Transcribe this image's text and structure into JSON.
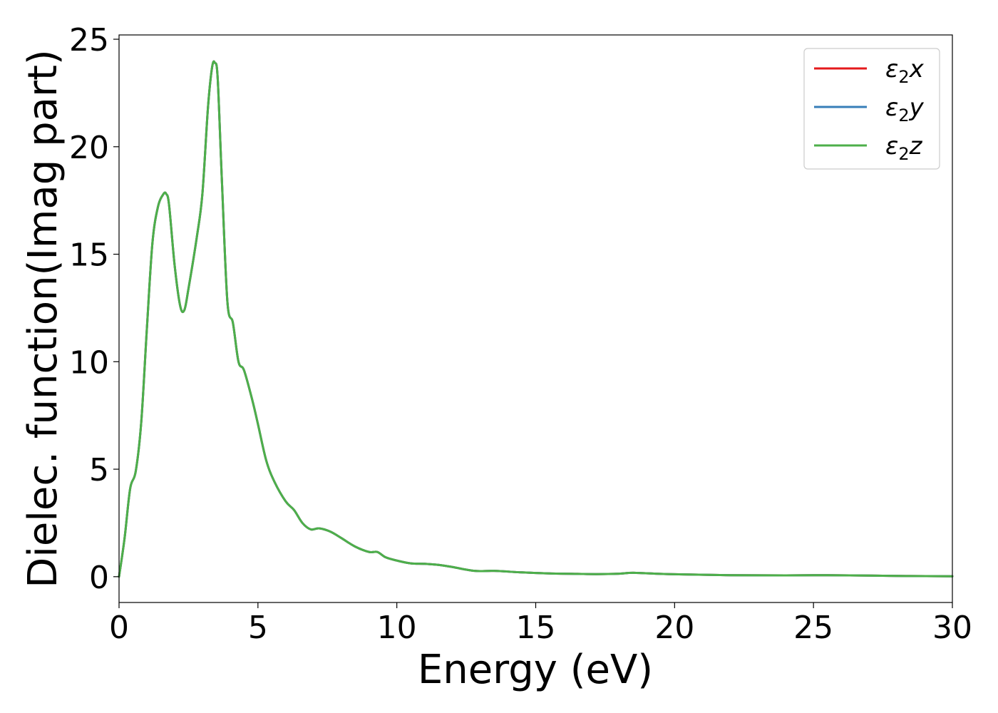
{
  "chart_data": {
    "type": "line",
    "xlabel": "Energy (eV)",
    "ylabel": "Dielec. function(Imag part)",
    "xlim": [
      0,
      30
    ],
    "ylim": [
      -1.2,
      25.2
    ],
    "xticks": [
      "0",
      "5",
      "10",
      "15",
      "20",
      "25",
      "30"
    ],
    "yticks": [
      "0",
      "5",
      "10",
      "15",
      "20",
      "25"
    ],
    "grid": false,
    "legend_position": "top-right",
    "x": [
      0,
      0.2,
      0.4,
      0.6,
      0.8,
      1.0,
      1.2,
      1.4,
      1.6,
      1.7,
      1.8,
      2.0,
      2.2,
      2.35,
      2.5,
      2.8,
      3.0,
      3.2,
      3.35,
      3.45,
      3.55,
      3.7,
      3.9,
      4.1,
      4.3,
      4.5,
      4.8,
      5.0,
      5.3,
      5.6,
      6.0,
      6.3,
      6.6,
      6.9,
      7.2,
      7.6,
      8.0,
      8.5,
      9.0,
      9.3,
      9.6,
      10.0,
      10.5,
      11.0,
      11.5,
      12.0,
      12.8,
      13.5,
      14.5,
      15.5,
      16.5,
      17.2,
      18.0,
      18.5,
      19.5,
      20.5,
      22.0,
      24.0,
      25.5,
      27.0,
      28.5,
      30.0
    ],
    "series": [
      {
        "name": "ε₂x",
        "color": "#e41a1c",
        "values": [
          0.0,
          1.8,
          4.1,
          4.9,
          7.2,
          11.5,
          15.5,
          17.2,
          17.8,
          17.8,
          17.3,
          14.5,
          12.6,
          12.4,
          13.4,
          15.8,
          17.8,
          21.8,
          23.7,
          23.9,
          23.2,
          18.5,
          12.8,
          11.8,
          10.0,
          9.6,
          8.2,
          7.1,
          5.4,
          4.4,
          3.5,
          3.1,
          2.5,
          2.2,
          2.25,
          2.1,
          1.8,
          1.4,
          1.15,
          1.15,
          0.9,
          0.75,
          0.62,
          0.6,
          0.55,
          0.45,
          0.27,
          0.27,
          0.2,
          0.15,
          0.13,
          0.12,
          0.14,
          0.18,
          0.13,
          0.1,
          0.07,
          0.06,
          0.07,
          0.05,
          0.03,
          0.02
        ]
      },
      {
        "name": "ε₂y",
        "color": "#377eb8",
        "values": [
          0.0,
          1.8,
          4.1,
          4.9,
          7.2,
          11.5,
          15.5,
          17.2,
          17.8,
          17.8,
          17.3,
          14.5,
          12.6,
          12.4,
          13.4,
          15.8,
          17.8,
          21.8,
          23.7,
          23.9,
          23.2,
          18.5,
          12.8,
          11.8,
          10.0,
          9.6,
          8.2,
          7.1,
          5.4,
          4.4,
          3.5,
          3.1,
          2.5,
          2.2,
          2.25,
          2.1,
          1.8,
          1.4,
          1.15,
          1.15,
          0.9,
          0.75,
          0.62,
          0.6,
          0.55,
          0.45,
          0.27,
          0.27,
          0.2,
          0.15,
          0.13,
          0.12,
          0.14,
          0.18,
          0.13,
          0.1,
          0.07,
          0.06,
          0.07,
          0.05,
          0.03,
          0.02
        ]
      },
      {
        "name": "ε₂z",
        "color": "#4daf4a",
        "values": [
          0.0,
          1.8,
          4.1,
          4.9,
          7.2,
          11.5,
          15.5,
          17.2,
          17.8,
          17.8,
          17.3,
          14.5,
          12.6,
          12.4,
          13.4,
          15.8,
          17.8,
          21.8,
          23.7,
          23.9,
          23.2,
          18.5,
          12.8,
          11.8,
          10.0,
          9.6,
          8.2,
          7.1,
          5.4,
          4.4,
          3.5,
          3.1,
          2.5,
          2.2,
          2.25,
          2.1,
          1.8,
          1.4,
          1.15,
          1.15,
          0.9,
          0.75,
          0.62,
          0.6,
          0.55,
          0.45,
          0.27,
          0.27,
          0.2,
          0.15,
          0.13,
          0.12,
          0.14,
          0.18,
          0.13,
          0.1,
          0.07,
          0.06,
          0.07,
          0.05,
          0.03,
          0.02
        ]
      }
    ],
    "legend_labels": [
      {
        "base": "ε",
        "sub": "2",
        "tail": "x"
      },
      {
        "base": "ε",
        "sub": "2",
        "tail": "y"
      },
      {
        "base": "ε",
        "sub": "2",
        "tail": "z"
      }
    ]
  }
}
